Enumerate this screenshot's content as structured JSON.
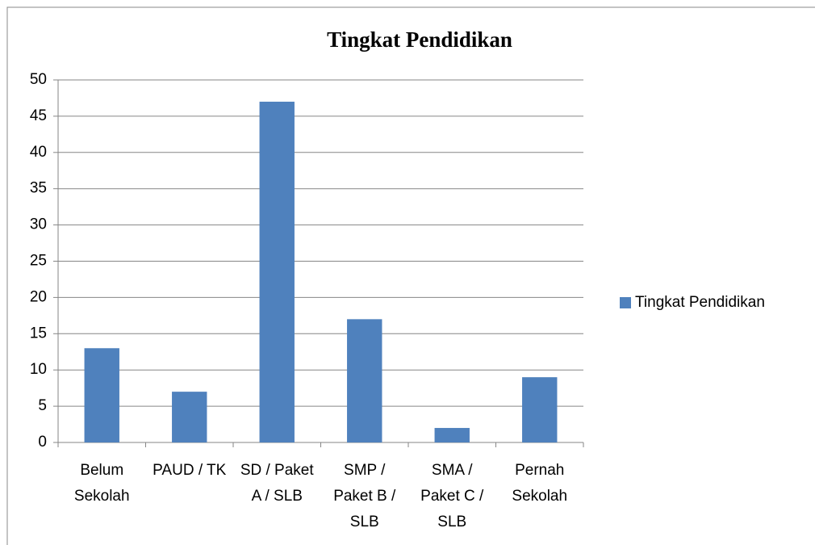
{
  "chart_data": {
    "type": "bar",
    "title": "Tingkat Pendidikan",
    "categories": [
      "Belum Sekolah",
      "PAUD / TK",
      "SD / Paket A / SLB",
      "SMP / Paket B / SLB",
      "SMA / Paket C / SLB",
      "Pernah Sekolah"
    ],
    "series": [
      {
        "name": "Tingkat Pendidikan",
        "color": "#4f81bd",
        "values": [
          13,
          7,
          47,
          17,
          2,
          9
        ]
      }
    ],
    "ylim": [
      0,
      50
    ],
    "yticks": [
      0,
      5,
      10,
      15,
      20,
      25,
      30,
      35,
      40,
      45,
      50
    ],
    "grid": true,
    "legend": "right"
  }
}
